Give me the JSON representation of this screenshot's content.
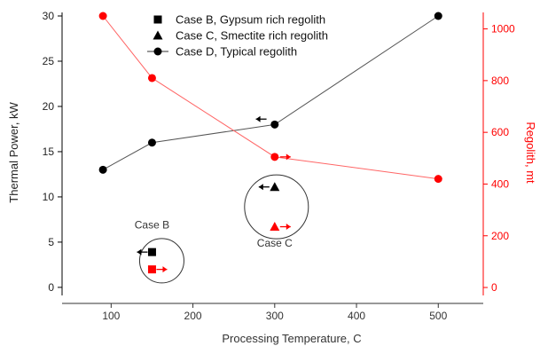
{
  "chart_data": {
    "type": "scatter",
    "title": "",
    "xlabel": "Processing Temperature, C",
    "ylabel": "Thermal Power, kW",
    "y2label": "Regolith, mt",
    "xlim": [
      40,
      555
    ],
    "ylim": [
      -0.5,
      30
    ],
    "y2lim": [
      -17,
      1050
    ],
    "x_ticks": [
      100,
      200,
      300,
      400,
      500
    ],
    "y_ticks": [
      0,
      5,
      10,
      15,
      20,
      25,
      30
    ],
    "y2_ticks": [
      0,
      200,
      400,
      600,
      800,
      1000
    ],
    "grid": false,
    "legend_position": "top-left",
    "colors": {
      "left_axis": "#000000",
      "right_axis": "#ff0000",
      "line_left": "#555555",
      "line_right": "#ff6666"
    },
    "series": [
      {
        "name": "Case B, Gypsum rich regolith",
        "marker": "square",
        "axis": "left",
        "points": [
          {
            "x": 150,
            "y": 3.9
          }
        ]
      },
      {
        "name": "Case C, Smectite rich regolith",
        "marker": "triangle",
        "axis": "left",
        "points": [
          {
            "x": 300,
            "y": 11.1
          }
        ]
      },
      {
        "name": "Case D, Typical regolith",
        "marker": "circle",
        "axis": "left",
        "connected": true,
        "points": [
          {
            "x": 90,
            "y": 13
          },
          {
            "x": 150,
            "y": 16
          },
          {
            "x": 300,
            "y": 18
          },
          {
            "x": 500,
            "y": 30
          }
        ]
      },
      {
        "name": "",
        "marker": "square",
        "axis": "right",
        "points": [
          {
            "x": 150,
            "y": 70
          }
        ]
      },
      {
        "name": "",
        "marker": "triangle",
        "axis": "right",
        "points": [
          {
            "x": 300,
            "y": 235
          }
        ]
      },
      {
        "name": "",
        "marker": "circle",
        "axis": "right",
        "connected": true,
        "points": [
          {
            "x": 90,
            "y": 1050
          },
          {
            "x": 150,
            "y": 810
          },
          {
            "x": 300,
            "y": 505
          },
          {
            "x": 500,
            "y": 420
          }
        ]
      }
    ],
    "annotations": [
      {
        "text": "Case B",
        "x": 150,
        "y": 6.5
      },
      {
        "text": "Case C",
        "x": 300,
        "y": 4.5
      }
    ]
  }
}
